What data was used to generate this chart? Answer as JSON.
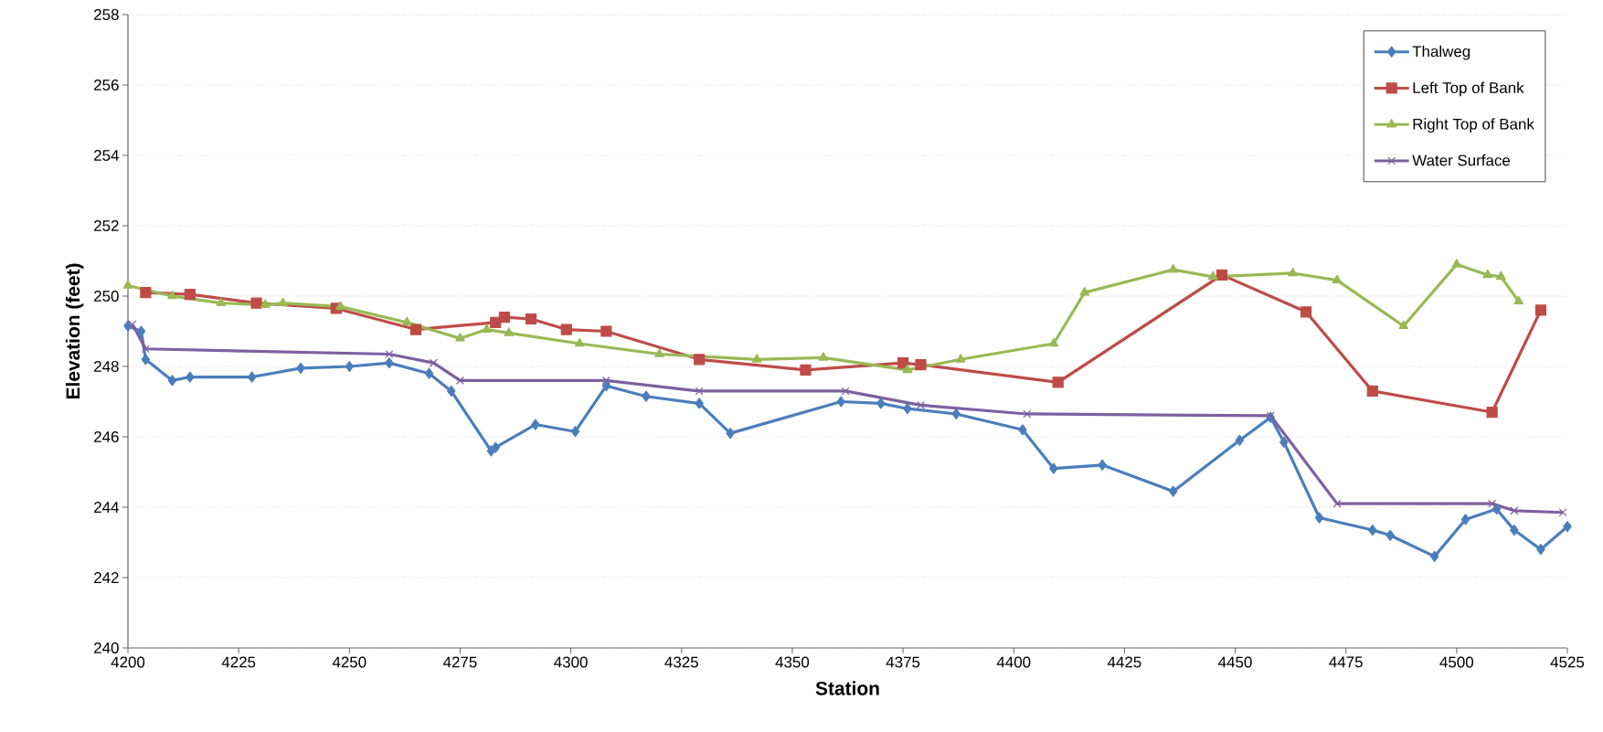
{
  "chart_data": {
    "type": "line",
    "xlabel": "Station",
    "ylabel": "Elevation (feet)",
    "xlim": [
      4200,
      4525
    ],
    "ylim": [
      240,
      258
    ],
    "xticks": [
      4200,
      4225,
      4250,
      4275,
      4300,
      4325,
      4350,
      4375,
      4400,
      4425,
      4450,
      4475,
      4500,
      4525
    ],
    "yticks": [
      240,
      242,
      244,
      246,
      248,
      250,
      252,
      254,
      256,
      258
    ],
    "grid": "y",
    "legend": "top right",
    "line_style": "solid",
    "series": [
      {
        "name": "Thalweg",
        "color": "#4a7ebb",
        "marker": "diamond",
        "x": [
          4200,
          4203,
          4204,
          4210,
          4214,
          4228,
          4239,
          4250,
          4259,
          4268,
          4273,
          4282,
          4283,
          4292,
          4301,
          4308,
          4317,
          4329,
          4336,
          4361,
          4370,
          4376,
          4387,
          4402,
          4409,
          4420,
          4436,
          4451,
          4458,
          4461,
          4469,
          4481,
          4485,
          4495,
          4502,
          4509,
          4513,
          4519,
          4525
        ],
        "values": [
          249.15,
          249.0,
          248.2,
          247.6,
          247.7,
          247.7,
          247.95,
          248.0,
          248.1,
          247.8,
          247.3,
          245.6,
          245.7,
          246.35,
          246.15,
          247.45,
          247.15,
          246.95,
          246.1,
          247.0,
          246.95,
          246.8,
          246.65,
          246.2,
          245.1,
          245.2,
          244.45,
          245.9,
          246.55,
          245.85,
          243.7,
          243.35,
          243.2,
          242.6,
          243.65,
          243.95,
          243.35,
          242.8,
          243.45
        ]
      },
      {
        "name": "Left Top of Bank",
        "color": "#be4b48",
        "marker": "square",
        "x": [
          4204,
          4214,
          4229,
          4247,
          4265,
          4283,
          4285,
          4291,
          4299,
          4308,
          4329,
          4353,
          4375,
          4379,
          4410,
          4447,
          4466,
          4481,
          4508,
          4519
        ],
        "values": [
          250.1,
          250.05,
          249.8,
          249.65,
          249.05,
          249.25,
          249.4,
          249.35,
          249.05,
          249.0,
          248.2,
          247.9,
          248.1,
          248.05,
          247.55,
          250.6,
          249.55,
          247.3,
          246.7,
          249.6
        ]
      },
      {
        "name": "Right Top of Bank",
        "color": "#98b954",
        "marker": "triangle",
        "x": [
          4200,
          4210,
          4221,
          4231,
          4235,
          4248,
          4263,
          4275,
          4281,
          4286,
          4302,
          4320,
          4342,
          4357,
          4376,
          4388,
          4409,
          4416,
          4436,
          4445,
          4463,
          4473,
          4488,
          4500,
          4507,
          4510,
          4514
        ],
        "values": [
          250.3,
          250.0,
          249.8,
          249.75,
          249.8,
          249.7,
          249.25,
          248.8,
          249.05,
          248.95,
          248.65,
          248.35,
          248.2,
          248.25,
          247.9,
          248.2,
          248.65,
          250.1,
          250.75,
          250.55,
          250.65,
          250.45,
          249.15,
          250.9,
          250.6,
          250.55,
          249.85
        ]
      },
      {
        "name": "Water Surface",
        "color": "#7d60a0",
        "marker": "cross",
        "x": [
          4201,
          4204,
          4259,
          4269,
          4275,
          4308,
          4329,
          4362,
          4379,
          4403,
          4458,
          4473,
          4508,
          4513,
          4524
        ],
        "values": [
          249.2,
          248.5,
          248.35,
          248.1,
          247.6,
          247.6,
          247.3,
          247.3,
          246.9,
          246.65,
          246.6,
          244.1,
          244.1,
          243.9,
          243.85
        ]
      }
    ]
  }
}
